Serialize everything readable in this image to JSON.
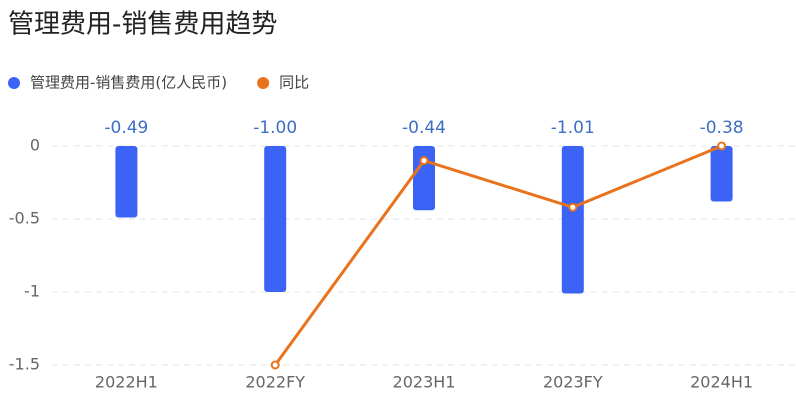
{
  "chart_data": {
    "type": "bar-line",
    "title": "管理费用-销售费用趋势",
    "categories": [
      "2022H1",
      "2022FY",
      "2023H1",
      "2023FY",
      "2024H1"
    ],
    "series": [
      {
        "name": "管理费用-销售费用(亿人民币)",
        "type": "bar",
        "color": "#3b63f6",
        "values": [
          -0.49,
          -1.0,
          -0.44,
          -1.01,
          -0.38
        ],
        "value_labels": [
          "-0.49",
          "-1.00",
          "-0.44",
          "-1.01",
          "-0.38"
        ]
      },
      {
        "name": "同比",
        "type": "line",
        "color": "#e8731c",
        "values": [
          null,
          -1.5,
          -0.1,
          -0.42,
          0
        ]
      }
    ],
    "ylim": [
      -1.5,
      0
    ],
    "yticks": [
      0,
      -0.5,
      -1,
      -1.5
    ],
    "grid": true
  }
}
